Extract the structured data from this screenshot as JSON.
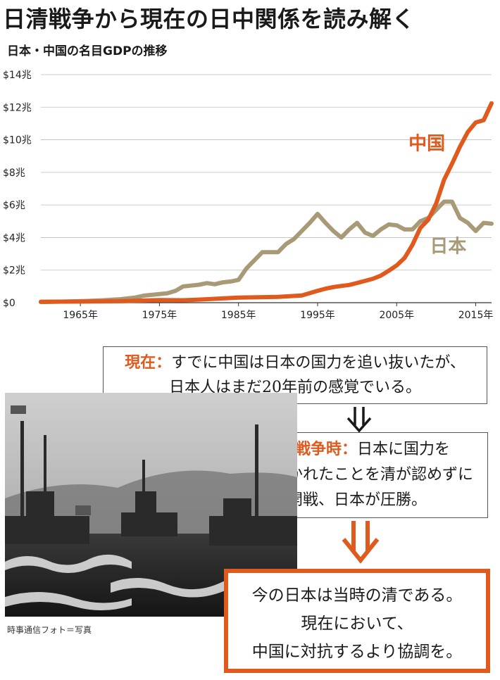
{
  "title": "日清戦争から現在の日中関係を読み解く",
  "subtitle": "日本・中国の名目GDPの推移",
  "chart_data": {
    "type": "line",
    "title": "",
    "xlabel": "",
    "ylabel": "",
    "xlim": [
      1960,
      2017
    ],
    "ylim": [
      0,
      14
    ],
    "x_ticks": [
      1965,
      1975,
      1985,
      1995,
      2005,
      2015
    ],
    "x_tick_labels": [
      "1965年",
      "1975年",
      "1985年",
      "1995年",
      "2005年",
      "2015年"
    ],
    "y_ticks": [
      0,
      2,
      4,
      6,
      8,
      10,
      12,
      14
    ],
    "y_tick_labels": [
      "$0",
      "$2兆",
      "$4兆",
      "$6兆",
      "$8兆",
      "$10兆",
      "$12兆",
      "$14兆"
    ],
    "grid": "horizontal",
    "series": [
      {
        "name": "日本",
        "color": "#a89a76",
        "x": [
          1960,
          1962,
          1964,
          1966,
          1968,
          1969,
          1970,
          1972,
          1973,
          1974,
          1976,
          1977,
          1978,
          1979,
          1980,
          1981,
          1982,
          1983,
          1984,
          1985,
          1986,
          1987,
          1988,
          1989,
          1990,
          1991,
          1992,
          1993,
          1994,
          1995,
          1996,
          1997,
          1998,
          1999,
          2000,
          2001,
          2002,
          2003,
          2004,
          2005,
          2006,
          2007,
          2008,
          2009,
          2010,
          2011,
          2012,
          2013,
          2014,
          2015,
          2016,
          2017
        ],
        "values": [
          0.04,
          0.06,
          0.08,
          0.11,
          0.15,
          0.18,
          0.21,
          0.32,
          0.43,
          0.48,
          0.58,
          0.72,
          1.0,
          1.05,
          1.1,
          1.2,
          1.13,
          1.25,
          1.3,
          1.4,
          2.1,
          2.6,
          3.1,
          3.1,
          3.1,
          3.6,
          3.9,
          4.4,
          4.9,
          5.45,
          4.9,
          4.4,
          4.0,
          4.5,
          4.9,
          4.3,
          4.1,
          4.5,
          4.8,
          4.75,
          4.5,
          4.5,
          5.0,
          5.2,
          5.7,
          6.2,
          6.2,
          5.2,
          4.9,
          4.4,
          4.9,
          4.85
        ]
      },
      {
        "name": "中国",
        "color": "#e05a1e",
        "x": [
          1960,
          1965,
          1970,
          1975,
          1978,
          1980,
          1985,
          1990,
          1993,
          1995,
          1996,
          1997,
          1998,
          1999,
          2000,
          2001,
          2002,
          2003,
          2004,
          2005,
          2006,
          2007,
          2008,
          2009,
          2010,
          2011,
          2012,
          2013,
          2014,
          2015,
          2016,
          2017
        ],
        "values": [
          0.06,
          0.07,
          0.09,
          0.16,
          0.15,
          0.19,
          0.31,
          0.36,
          0.44,
          0.73,
          0.86,
          0.96,
          1.03,
          1.09,
          1.21,
          1.34,
          1.47,
          1.66,
          1.96,
          2.29,
          2.75,
          3.55,
          4.59,
          5.1,
          6.09,
          7.55,
          8.53,
          9.57,
          10.48,
          11.06,
          11.2,
          12.24
        ]
      }
    ],
    "annotations": [
      "中国",
      "日本"
    ]
  },
  "box1": {
    "lead": "現在：",
    "line1": "すでに中国は日本の国力を追い抜いたが、",
    "line2": "日本人はまだ20年前の感覚でいる。"
  },
  "box2": {
    "lead": "日清戦争時：",
    "line1": "日本に国力を",
    "line2": "追い抜かれたことを清が認めずに",
    "line3": "開戦、日本が圧勝。"
  },
  "box3": {
    "line1": "今の日本は当時の清である。",
    "line2": "現在において、",
    "line3": "中国に対抗するより協調を。"
  },
  "photo_caption": "時事通信フォト＝写真",
  "colors": {
    "accent": "#e05a1e",
    "japan": "#a89a76",
    "text": "#1a1a1a"
  }
}
